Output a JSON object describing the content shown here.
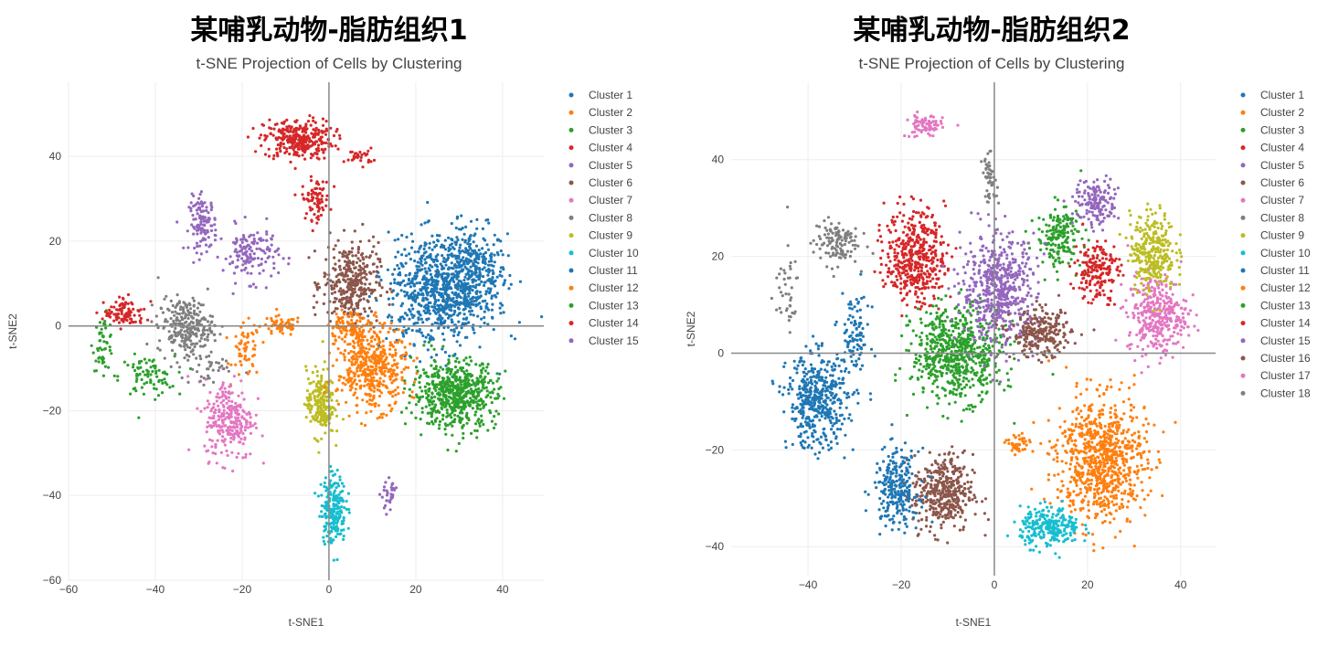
{
  "chart_data": [
    {
      "type": "scatter",
      "title": "某哺乳动物-脂肪组织1",
      "subtitle": "t-SNE Projection of Cells by Clustering",
      "xlabel": "t-SNE1",
      "ylabel": "t-SNE2",
      "xlim": [
        -60,
        49.5
      ],
      "ylim": [
        -60,
        57.5
      ],
      "xticks": [
        -60,
        -40,
        -20,
        0,
        20,
        40
      ],
      "yticks": [
        -60,
        -40,
        -20,
        0,
        20,
        40
      ],
      "grid": true,
      "zero_lines": true,
      "legend_position": "right",
      "note_points": "clusters given as approximate gaussian blobs [center_x, center_y, spread_x, spread_y, point_count] in data units",
      "series": [
        {
          "name": "Cluster 1",
          "color": "#1f77b4",
          "blobs": [
            [
              33,
              12,
              5,
              7,
              350
            ]
          ]
        },
        {
          "name": "Cluster 2",
          "color": "#ff7f0e",
          "blobs": [
            [
              -11,
              0,
              3,
              1.5,
              60
            ],
            [
              -19,
              -6,
              2,
              4,
              60
            ]
          ]
        },
        {
          "name": "Cluster 3",
          "color": "#2ca02c",
          "blobs": [
            [
              -52,
              -4,
              1.5,
              4,
              50
            ],
            [
              -42,
              -12,
              4,
              3,
              80
            ]
          ]
        },
        {
          "name": "Cluster 4",
          "color": "#d62728",
          "blobs": [
            [
              -7,
              44,
              5,
              3,
              300
            ],
            [
              7,
              40,
              2,
              1.2,
              30
            ],
            [
              -3,
              30,
              2,
              3,
              80
            ]
          ]
        },
        {
          "name": "Cluster 5",
          "color": "#9467bd",
          "blobs": [
            [
              -29,
              24,
              2,
              4,
              120
            ],
            [
              -18,
              17,
              4,
              4,
              140
            ]
          ]
        },
        {
          "name": "Cluster 6",
          "color": "#8c564b",
          "blobs": [
            [
              5,
              10,
              4,
              6,
              350
            ]
          ]
        },
        {
          "name": "Cluster 7",
          "color": "#e377c2",
          "blobs": [
            [
              -23,
              -22,
              3.5,
              6,
              260
            ]
          ]
        },
        {
          "name": "Cluster 8",
          "color": "#7f7f7f",
          "blobs": [
            [
              -33,
              0,
              4,
              4,
              250
            ],
            [
              -28,
              -10,
              4,
              3,
              40
            ]
          ]
        },
        {
          "name": "Cluster 9",
          "color": "#bcbd22",
          "blobs": [
            [
              -2,
              -18,
              2,
              5,
              220
            ]
          ]
        },
        {
          "name": "Cluster 10",
          "color": "#17becf",
          "blobs": [
            [
              1,
              -43,
              1.8,
              5,
              220
            ]
          ]
        },
        {
          "name": "Cluster 11",
          "color": "#1f77b4",
          "blobs": [
            [
              25,
              8,
              7,
              8,
              700
            ]
          ]
        },
        {
          "name": "Cluster 12",
          "color": "#ff7f0e",
          "blobs": [
            [
              10,
              -10,
              5,
              6,
              450
            ],
            [
              5,
              0,
              3,
              2,
              100
            ]
          ]
        },
        {
          "name": "Cluster 13",
          "color": "#2ca02c",
          "blobs": [
            [
              29,
              -16,
              6,
              5,
              600
            ]
          ]
        },
        {
          "name": "Cluster 14",
          "color": "#d62728",
          "blobs": [
            [
              -47,
              3,
              3,
              2,
              100
            ]
          ]
        },
        {
          "name": "Cluster 15",
          "color": "#9467bd",
          "blobs": [
            [
              14,
              -40,
              1.2,
              2,
              30
            ]
          ]
        }
      ]
    },
    {
      "type": "scatter",
      "title": "某哺乳动物-脂肪组织2",
      "subtitle": "t-SNE Projection of Cells by Clustering",
      "xlabel": "t-SNE1",
      "ylabel": "t-SNE2",
      "xlim": [
        -56.5,
        47.5
      ],
      "ylim": [
        -46,
        56
      ],
      "xticks": [
        -40,
        -20,
        0,
        20,
        40
      ],
      "yticks": [
        -40,
        -20,
        0,
        20,
        40
      ],
      "grid": true,
      "zero_lines": true,
      "legend_position": "right",
      "series": [
        {
          "name": "Cluster 1",
          "color": "#1f77b4",
          "blobs": [
            [
              -38,
              -10,
              4,
              6,
              450
            ]
          ]
        },
        {
          "name": "Cluster 2",
          "color": "#ff7f0e",
          "blobs": [
            [
              23,
              -22,
              6,
              8,
              800
            ]
          ]
        },
        {
          "name": "Cluster 3",
          "color": "#2ca02c",
          "blobs": [
            [
              14,
              24,
              3,
              4,
              180
            ]
          ]
        },
        {
          "name": "Cluster 4",
          "color": "#d62728",
          "blobs": [
            [
              -17,
              20,
              4,
              6,
              450
            ]
          ]
        },
        {
          "name": "Cluster 5",
          "color": "#9467bd",
          "blobs": [
            [
              22,
              31,
              3,
              3,
              150
            ]
          ]
        },
        {
          "name": "Cluster 6",
          "color": "#8c564b",
          "blobs": [
            [
              -11,
              -29,
              4,
              5,
              400
            ]
          ]
        },
        {
          "name": "Cluster 7",
          "color": "#e377c2",
          "blobs": [
            [
              35,
              8,
              4,
              5,
              350
            ]
          ]
        },
        {
          "name": "Cluster 8",
          "color": "#7f7f7f",
          "blobs": [
            [
              -34,
              23,
              3,
              3,
              120
            ],
            [
              -45,
              13,
              2,
              6,
              40
            ]
          ]
        },
        {
          "name": "Cluster 9",
          "color": "#bcbd22",
          "blobs": [
            [
              34,
              21,
              3,
              5,
              300
            ]
          ]
        },
        {
          "name": "Cluster 10",
          "color": "#17becf",
          "blobs": [
            [
              12,
              -36,
              4,
              2.5,
              250
            ]
          ]
        },
        {
          "name": "Cluster 11",
          "color": "#1f77b4",
          "blobs": [
            [
              -21,
              -28,
              3,
              5,
              250
            ],
            [
              -30,
              3,
              2,
              6,
              100
            ]
          ]
        },
        {
          "name": "Cluster 12",
          "color": "#ff7f0e",
          "blobs": [
            [
              5,
              -19,
              1.5,
              1.5,
              40
            ]
          ]
        },
        {
          "name": "Cluster 13",
          "color": "#2ca02c",
          "blobs": [
            [
              -8,
              0,
              6,
              6,
              650
            ]
          ]
        },
        {
          "name": "Cluster 14",
          "color": "#d62728",
          "blobs": [
            [
              22,
              17,
              3,
              4,
              180
            ]
          ]
        },
        {
          "name": "Cluster 15",
          "color": "#9467bd",
          "blobs": [
            [
              1,
              13,
              5,
              7,
              550
            ]
          ]
        },
        {
          "name": "Cluster 16",
          "color": "#8c564b",
          "blobs": [
            [
              10,
              4,
              4,
              3,
              250
            ]
          ]
        },
        {
          "name": "Cluster 17",
          "color": "#e377c2",
          "blobs": [
            [
              -15,
              47,
              2.5,
              1.5,
              80
            ]
          ]
        },
        {
          "name": "Cluster 18",
          "color": "#7f7f7f",
          "blobs": [
            [
              -1,
              36,
              1,
              3,
              50
            ]
          ]
        }
      ]
    }
  ]
}
